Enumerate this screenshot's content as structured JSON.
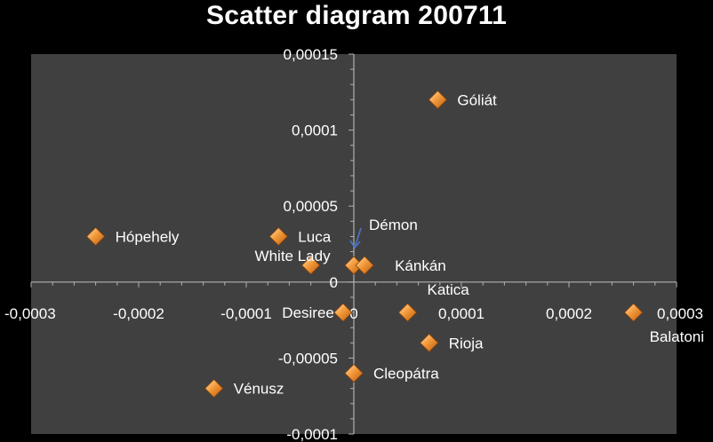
{
  "chart_data": {
    "type": "scatter",
    "title": "Scatter diagram 200711",
    "xlabel": "",
    "ylabel": "",
    "xlim": [
      -0.0003,
      0.0003
    ],
    "ylim": [
      -0.0001,
      0.00015
    ],
    "x_ticks": [
      {
        "value": -0.0003,
        "label": "-0,0003"
      },
      {
        "value": -0.0002,
        "label": "-0,0002"
      },
      {
        "value": -0.0001,
        "label": "-0,0001"
      },
      {
        "value": 0,
        "label": "0"
      },
      {
        "value": 0.0001,
        "label": "0,0001"
      },
      {
        "value": 0.0002,
        "label": "0,0002"
      },
      {
        "value": 0.0003,
        "label": "0,0003"
      }
    ],
    "y_ticks": [
      {
        "value": 0.00015,
        "label": "0,00015"
      },
      {
        "value": 0.0001,
        "label": "0,0001"
      },
      {
        "value": 5e-05,
        "label": "0,00005"
      },
      {
        "value": 0,
        "label": "0"
      },
      {
        "value": -5e-05,
        "label": "-0,00005"
      },
      {
        "value": -0.0001,
        "label": "-0,0001"
      }
    ],
    "grid": false,
    "points": [
      {
        "label": "Góliát",
        "x": 7.8e-05,
        "y": 0.00012
      },
      {
        "label": "Hópehely",
        "x": -0.00024,
        "y": 3e-05
      },
      {
        "label": "Luca",
        "x": -7e-05,
        "y": 3e-05
      },
      {
        "label": "White Lady",
        "x": -4e-05,
        "y": 1.1e-05
      },
      {
        "label": "Démon",
        "x": 0.0,
        "y": 1.1e-05
      },
      {
        "label": "Kánkán",
        "x": 1e-05,
        "y": 1.1e-05
      },
      {
        "label": "Desiree",
        "x": -1e-05,
        "y": -2e-05
      },
      {
        "label": "Katica",
        "x": 5e-05,
        "y": -2e-05
      },
      {
        "label": "Rioja",
        "x": 7e-05,
        "y": -4e-05
      },
      {
        "label": "Balatoni",
        "x": 0.00026,
        "y": -2e-05
      },
      {
        "label": "Cleopátra",
        "x": 0.0,
        "y": -6e-05
      },
      {
        "label": "Vénusz",
        "x": -0.00013,
        "y": -7e-05
      }
    ],
    "colors": {
      "background": "#000000",
      "plot_area": "#404040",
      "axis": "#b0b0b0",
      "marker": "#ef8a2a",
      "marker_light": "#ffd9a8",
      "marker_dark": "#b85a10",
      "annotation_arrow": "#4a74c4"
    }
  }
}
